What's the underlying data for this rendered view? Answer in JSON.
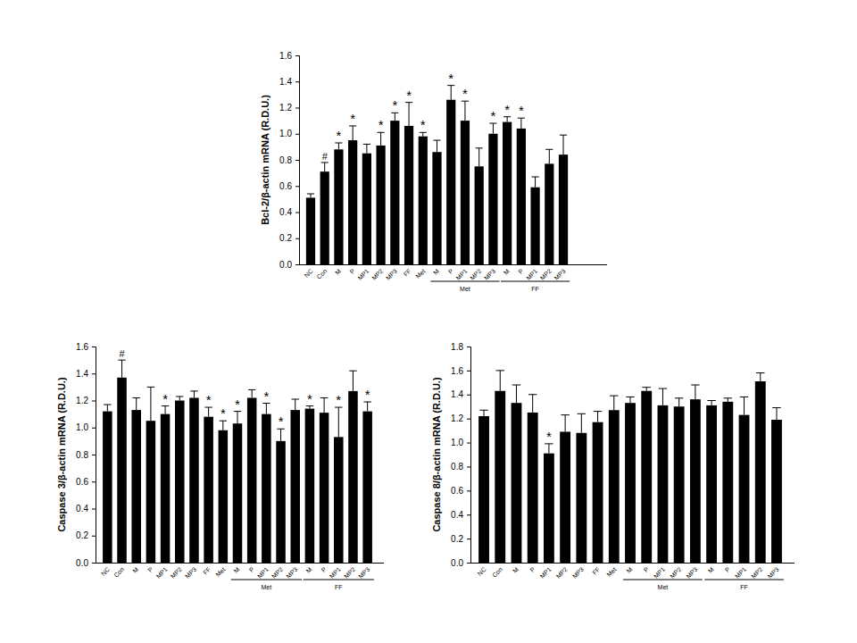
{
  "chart_data": [
    {
      "type": "bar",
      "y_label": "Bcl-2/β-actin mRNA (R.D.U.)",
      "categories": [
        "NC",
        "Con",
        "M",
        "P",
        "MP1",
        "MP2",
        "MP3",
        "FF",
        "Met",
        "M",
        "P",
        "MP1",
        "MP2",
        "MP3",
        "M",
        "P",
        "MP1",
        "MP2",
        "MP3"
      ],
      "values": [
        0.51,
        0.71,
        0.88,
        0.95,
        0.85,
        0.91,
        1.1,
        1.06,
        0.98,
        0.86,
        1.26,
        1.1,
        0.75,
        1.0,
        1.09,
        1.04,
        0.59,
        0.77,
        0.84
      ],
      "errors": [
        0.03,
        0.07,
        0.05,
        0.11,
        0.07,
        0.1,
        0.06,
        0.18,
        0.03,
        0.09,
        0.11,
        0.15,
        0.14,
        0.08,
        0.04,
        0.08,
        0.08,
        0.11,
        0.15
      ],
      "annotations": [
        null,
        "#",
        "*",
        "*",
        null,
        "*",
        "*",
        "*",
        "*",
        null,
        "*",
        "*",
        null,
        "*",
        "*",
        "*",
        null,
        null,
        null
      ],
      "groups": [
        {
          "label": "Met",
          "from": 9,
          "to": 13
        },
        {
          "label": "FF",
          "from": 14,
          "to": 18
        }
      ],
      "color": "#000000",
      "ylim": [
        0,
        1.6
      ],
      "yticks": [
        {
          "value": 0,
          "label": "0.0"
        },
        0.2,
        0.4,
        0.6,
        0.8,
        {
          "value": 1,
          "label": "1.0"
        },
        1.2,
        1.4,
        1.6
      ]
    },
    {
      "type": "bar",
      "y_label": "Caspase 3/β-actin mRNA (R.D.U.)",
      "categories": [
        "NC",
        "Con",
        "M",
        "P",
        "MP1",
        "MP2",
        "MP3",
        "FF",
        "Met",
        "M",
        "P",
        "MP1",
        "MP2",
        "MP3",
        "M",
        "P",
        "MP1",
        "MP2",
        "MP3"
      ],
      "values": [
        1.12,
        1.37,
        1.13,
        1.05,
        1.1,
        1.2,
        1.22,
        1.08,
        0.98,
        1.03,
        1.22,
        1.1,
        0.9,
        1.13,
        1.14,
        1.11,
        0.93,
        1.27,
        1.12
      ],
      "errors": [
        0.05,
        0.13,
        0.09,
        0.25,
        0.06,
        0.03,
        0.05,
        0.07,
        0.07,
        0.09,
        0.06,
        0.08,
        0.09,
        0.08,
        0.02,
        0.11,
        0.22,
        0.15,
        0.07
      ],
      "annotations": [
        null,
        "#",
        null,
        null,
        "*",
        null,
        null,
        "*",
        "*",
        "*",
        null,
        "*",
        "*",
        null,
        "*",
        null,
        "*",
        null,
        "*"
      ],
      "groups": [
        {
          "label": "Met",
          "from": 9,
          "to": 13
        },
        {
          "label": "FF",
          "from": 14,
          "to": 18
        }
      ],
      "color": "#000000",
      "ylim": [
        0,
        1.6
      ],
      "yticks": [
        {
          "value": 0,
          "label": "0.0"
        },
        0.2,
        0.4,
        0.6,
        0.8,
        {
          "value": 1,
          "label": "1.0"
        },
        1.2,
        1.4,
        1.6
      ]
    },
    {
      "type": "bar",
      "y_label": "Caspase 8/β-actin mRNA (R.D.U.)",
      "categories": [
        "NC",
        "Con",
        "M",
        "P",
        "MP1",
        "MP2",
        "MP3",
        "FF",
        "Met",
        "M",
        "P",
        "MP1",
        "MP2",
        "MP3",
        "M",
        "P",
        "MP1",
        "MP2",
        "MP3"
      ],
      "values": [
        1.22,
        1.43,
        1.33,
        1.25,
        0.91,
        1.09,
        1.08,
        1.17,
        1.27,
        1.33,
        1.43,
        1.31,
        1.3,
        1.36,
        1.31,
        1.34,
        1.23,
        1.51,
        1.19
      ],
      "errors": [
        0.05,
        0.17,
        0.15,
        0.15,
        0.08,
        0.14,
        0.16,
        0.09,
        0.12,
        0.05,
        0.03,
        0.14,
        0.07,
        0.12,
        0.04,
        0.03,
        0.15,
        0.07,
        0.1
      ],
      "annotations": [
        null,
        null,
        null,
        null,
        "*",
        null,
        null,
        null,
        null,
        null,
        null,
        null,
        null,
        null,
        null,
        null,
        null,
        null,
        null
      ],
      "groups": [
        {
          "label": "Met",
          "from": 9,
          "to": 13
        },
        {
          "label": "FF",
          "from": 14,
          "to": 18
        }
      ],
      "color": "#000000",
      "ylim": [
        0,
        1.8
      ],
      "yticks": [
        {
          "value": 0,
          "label": "0.0"
        },
        0.2,
        0.4,
        0.6,
        0.8,
        {
          "value": 1,
          "label": "1.0"
        },
        1.2,
        1.4,
        1.6,
        1.8
      ]
    }
  ]
}
